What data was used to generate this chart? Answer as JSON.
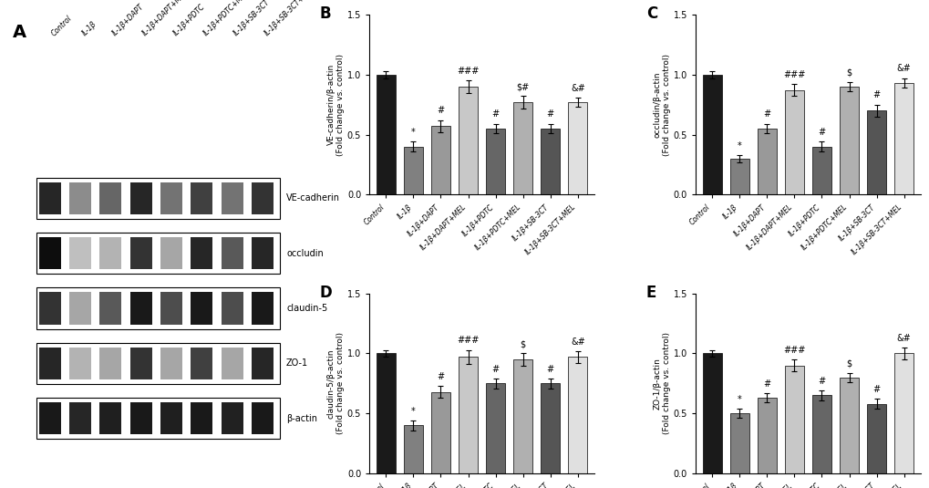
{
  "categories": [
    "Control",
    "IL-1β",
    "IL-1β+DAPT",
    "IL-1β+DAPT+MEL",
    "IL-1β+PDTC",
    "IL-1β+PDTC+MEL",
    "IL-1β+SB-3CT",
    "IL-1β+SB-3CT+MEL"
  ],
  "bar_colors": [
    "#1a1a1a",
    "#808080",
    "#999999",
    "#c8c8c8",
    "#666666",
    "#b0b0b0",
    "#555555",
    "#e0e0e0"
  ],
  "B_values": [
    1.0,
    0.4,
    0.57,
    0.9,
    0.55,
    0.77,
    0.55,
    0.77
  ],
  "B_errors": [
    0.03,
    0.04,
    0.05,
    0.05,
    0.04,
    0.05,
    0.04,
    0.04
  ],
  "C_values": [
    1.0,
    0.3,
    0.55,
    0.87,
    0.4,
    0.9,
    0.7,
    0.93
  ],
  "C_errors": [
    0.03,
    0.03,
    0.04,
    0.05,
    0.04,
    0.04,
    0.05,
    0.04
  ],
  "D_values": [
    1.0,
    0.4,
    0.68,
    0.97,
    0.75,
    0.95,
    0.75,
    0.97
  ],
  "D_errors": [
    0.03,
    0.04,
    0.05,
    0.06,
    0.04,
    0.05,
    0.04,
    0.05
  ],
  "E_values": [
    1.0,
    0.5,
    0.63,
    0.9,
    0.65,
    0.8,
    0.58,
    1.0
  ],
  "E_errors": [
    0.03,
    0.04,
    0.04,
    0.05,
    0.04,
    0.04,
    0.04,
    0.05
  ],
  "B_ylabel": "VE-cadherin/β-actin\n(Fold change vs. control)",
  "C_ylabel": "occludin/β-actin\n(Fold change vs. control)",
  "D_ylabel": "claudin-5/β-actin\n(Fold change vs. control)",
  "E_ylabel": "ZO-1/β-actin\n(Fold change vs. control)",
  "ylim": [
    0.0,
    1.5
  ],
  "yticks": [
    0.0,
    0.5,
    1.0,
    1.5
  ],
  "panel_labels": [
    "B",
    "C",
    "D",
    "E"
  ],
  "wb_labels": [
    "VE-cadherin",
    "occludin",
    "claudin-5",
    "ZO-1",
    "β-actin"
  ],
  "significance_B": {
    "1": [
      "*"
    ],
    "2": [
      "#"
    ],
    "3": [
      "##",
      "#"
    ],
    "4": [
      "#"
    ],
    "5": [
      "$",
      "#"
    ],
    "6": [
      "#"
    ],
    "7": [
      "&",
      "#"
    ]
  },
  "significance_C": {
    "1": [
      "*"
    ],
    "2": [
      "#"
    ],
    "3": [
      "##",
      "#"
    ],
    "4": [
      "#"
    ],
    "5": [
      "$"
    ],
    "6": [
      "#"
    ],
    "7": [
      "&",
      "#"
    ]
  },
  "significance_D": {
    "1": [
      "*"
    ],
    "2": [
      "#"
    ],
    "3": [
      "##",
      "#"
    ],
    "4": [
      "#"
    ],
    "5": [
      "$"
    ],
    "6": [
      "#"
    ],
    "7": [
      "&",
      "#"
    ]
  },
  "significance_E": {
    "1": [
      "*"
    ],
    "2": [
      "#"
    ],
    "3": [
      "##",
      "#"
    ],
    "4": [
      "#"
    ],
    "5": [
      "$"
    ],
    "6": [
      "#"
    ],
    "7": [
      "&",
      "#"
    ]
  },
  "background_color": "#ffffff"
}
